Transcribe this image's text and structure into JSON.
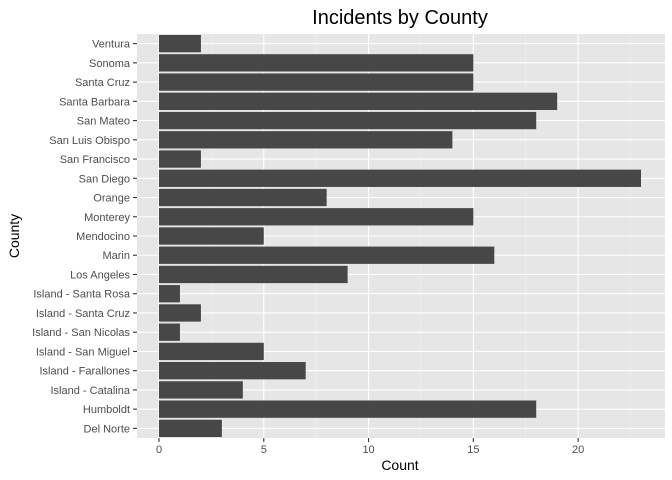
{
  "chart_data": {
    "type": "bar",
    "orientation": "horizontal",
    "title": "Incidents by County",
    "xlabel": "Count",
    "ylabel": "County",
    "xlim": [
      0,
      23
    ],
    "xticks": [
      0,
      5,
      10,
      15,
      20
    ],
    "grid": true,
    "legend": "none",
    "categories": [
      "Ventura",
      "Sonoma",
      "Santa Cruz",
      "Santa Barbara",
      "San Mateo",
      "San Luis Obispo",
      "San Francisco",
      "San Diego",
      "Orange",
      "Monterey",
      "Mendocino",
      "Marin",
      "Los Angeles",
      "Island - Santa Rosa",
      "Island - Santa Cruz",
      "Island - San Nicolas",
      "Island - San Miguel",
      "Island - Farallones",
      "Island - Catalina",
      "Humboldt",
      "Del Norte"
    ],
    "values": [
      2,
      15,
      15,
      19,
      18,
      14,
      2,
      23,
      8,
      15,
      5,
      16,
      9,
      1,
      2,
      1,
      5,
      7,
      4,
      18,
      3
    ],
    "colors": {
      "bar": "#474747",
      "panel_background": "#e6e6e6",
      "grid": "#ffffff",
      "tick_label": "#4d4d4d"
    }
  }
}
